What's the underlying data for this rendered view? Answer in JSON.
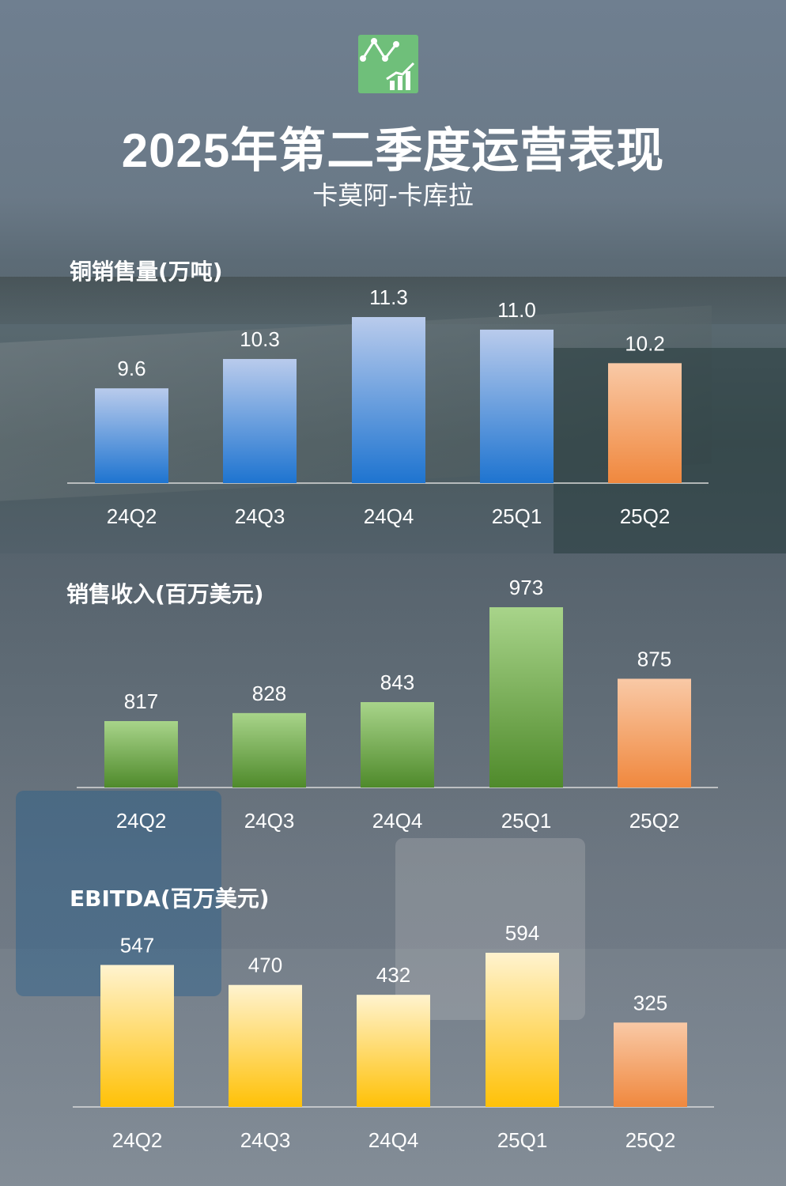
{
  "header": {
    "title": "2025年第二季度运营表现",
    "subtitle": "卡莫阿-卡库拉",
    "logo_icon": "chart-analytics-icon"
  },
  "colors": {
    "blue_top": "#b9cbec",
    "blue_bottom": "#1e74d0",
    "green_top": "#a8d48a",
    "green_bottom": "#4f8a2b",
    "yellow_top": "#fff3cf",
    "yellow_bottom": "#ffc107",
    "orange_top": "#f9c9a6",
    "orange_bottom": "#f0883e"
  },
  "chart_data": [
    {
      "type": "bar",
      "title": "铜销售量(万吨)",
      "categories": [
        "24Q2",
        "24Q3",
        "24Q4",
        "25Q1",
        "25Q2"
      ],
      "values": [
        9.6,
        10.3,
        11.3,
        11.0,
        10.2
      ],
      "labels": [
        "9.6",
        "10.3",
        "11.3",
        "11.0",
        "10.2"
      ],
      "highlight_last": true
    },
    {
      "type": "bar",
      "title": "销售收入(百万美元)",
      "categories": [
        "24Q2",
        "24Q3",
        "24Q4",
        "25Q1",
        "25Q2"
      ],
      "values": [
        817,
        828,
        843,
        973,
        875
      ],
      "labels": [
        "817",
        "828",
        "843",
        "973",
        "875"
      ],
      "highlight_last": true
    },
    {
      "type": "bar",
      "title": "EBITDA(百万美元)",
      "categories": [
        "24Q2",
        "24Q3",
        "24Q4",
        "25Q1",
        "25Q2"
      ],
      "values": [
        547,
        470,
        432,
        594,
        325
      ],
      "labels": [
        "547",
        "470",
        "432",
        "594",
        "325"
      ],
      "highlight_last": true
    }
  ]
}
